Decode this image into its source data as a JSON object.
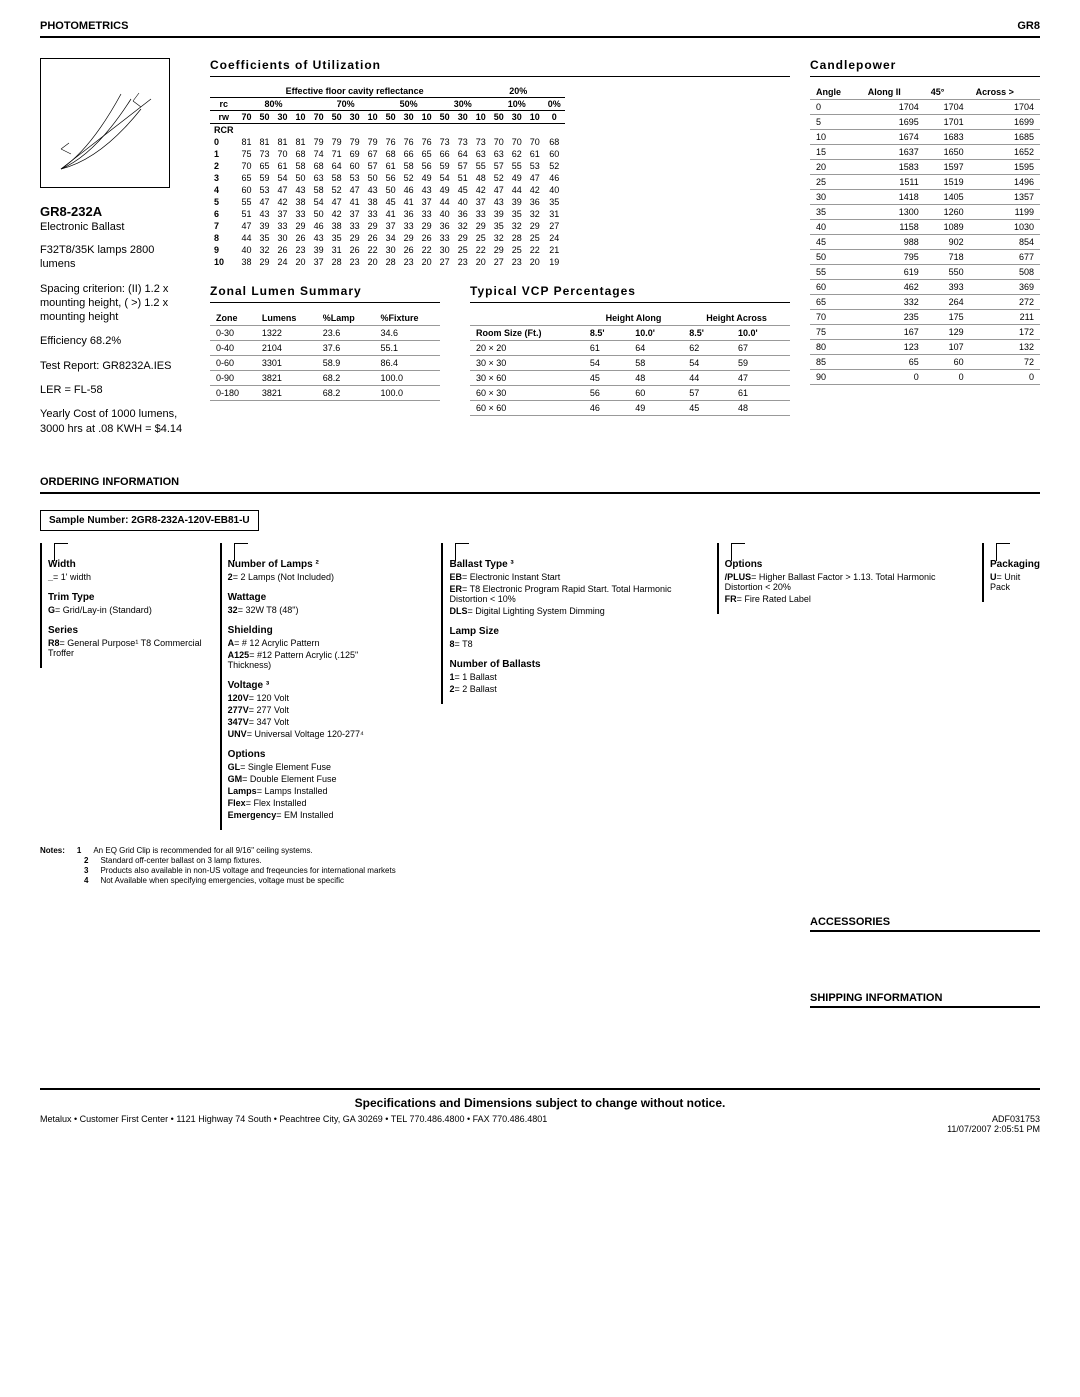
{
  "header": {
    "left": "PHOTOMETRICS",
    "right": "GR8"
  },
  "product": {
    "model": "GR8-232A",
    "ballast": "Electronic Ballast",
    "lamps": "F32T8/35K lamps 2800 lumens",
    "spacing": "Spacing criterion: (II) 1.2 x mounting height, ( >) 1.2 x mounting height",
    "efficiency": "Efficiency 68.2%",
    "test_report": "Test Report: GR8232A.IES",
    "ler": "LER = FL-58",
    "yearly": "Yearly Cost of 1000 lumens, 3000 hrs at .08 KWH = $4.14"
  },
  "cu": {
    "title": "Coefficients of Utilization",
    "top_header": "Effective floor cavity reflectance",
    "top_right": "20%",
    "rc_labels": [
      "rc",
      "80%",
      "70%",
      "50%",
      "30%",
      "10%",
      "0%"
    ],
    "rw_labels": [
      "rw",
      "70",
      "50",
      "30",
      "10",
      "70",
      "50",
      "30",
      "10",
      "50",
      "30",
      "10",
      "50",
      "30",
      "10",
      "50",
      "30",
      "10",
      "0"
    ],
    "rows": [
      [
        "0",
        "81",
        "81",
        "81",
        "81",
        "79",
        "79",
        "79",
        "79",
        "76",
        "76",
        "76",
        "73",
        "73",
        "73",
        "70",
        "70",
        "70",
        "68"
      ],
      [
        "1",
        "75",
        "73",
        "70",
        "68",
        "74",
        "71",
        "69",
        "67",
        "68",
        "66",
        "65",
        "66",
        "64",
        "63",
        "63",
        "62",
        "61",
        "60"
      ],
      [
        "2",
        "70",
        "65",
        "61",
        "58",
        "68",
        "64",
        "60",
        "57",
        "61",
        "58",
        "56",
        "59",
        "57",
        "55",
        "57",
        "55",
        "53",
        "52"
      ],
      [
        "3",
        "65",
        "59",
        "54",
        "50",
        "63",
        "58",
        "53",
        "50",
        "56",
        "52",
        "49",
        "54",
        "51",
        "48",
        "52",
        "49",
        "47",
        "46"
      ],
      [
        "4",
        "60",
        "53",
        "47",
        "43",
        "58",
        "52",
        "47",
        "43",
        "50",
        "46",
        "43",
        "49",
        "45",
        "42",
        "47",
        "44",
        "42",
        "40"
      ],
      [
        "5",
        "55",
        "47",
        "42",
        "38",
        "54",
        "47",
        "41",
        "38",
        "45",
        "41",
        "37",
        "44",
        "40",
        "37",
        "43",
        "39",
        "36",
        "35"
      ],
      [
        "6",
        "51",
        "43",
        "37",
        "33",
        "50",
        "42",
        "37",
        "33",
        "41",
        "36",
        "33",
        "40",
        "36",
        "33",
        "39",
        "35",
        "32",
        "31"
      ],
      [
        "7",
        "47",
        "39",
        "33",
        "29",
        "46",
        "38",
        "33",
        "29",
        "37",
        "33",
        "29",
        "36",
        "32",
        "29",
        "35",
        "32",
        "29",
        "27"
      ],
      [
        "8",
        "44",
        "35",
        "30",
        "26",
        "43",
        "35",
        "29",
        "26",
        "34",
        "29",
        "26",
        "33",
        "29",
        "25",
        "32",
        "28",
        "25",
        "24"
      ],
      [
        "9",
        "40",
        "32",
        "26",
        "23",
        "39",
        "31",
        "26",
        "22",
        "30",
        "26",
        "22",
        "30",
        "25",
        "22",
        "29",
        "25",
        "22",
        "21"
      ],
      [
        "10",
        "38",
        "29",
        "24",
        "20",
        "37",
        "28",
        "23",
        "20",
        "28",
        "23",
        "20",
        "27",
        "23",
        "20",
        "27",
        "23",
        "20",
        "19"
      ]
    ]
  },
  "zonal": {
    "title": "Zonal Lumen Summary",
    "headers": [
      "Zone",
      "Lumens",
      "%Lamp",
      "%Fixture"
    ],
    "rows": [
      [
        "0-30",
        "1322",
        "23.6",
        "34.6"
      ],
      [
        "0-40",
        "2104",
        "37.6",
        "55.1"
      ],
      [
        "0-60",
        "3301",
        "58.9",
        "86.4"
      ],
      [
        "0-90",
        "3821",
        "68.2",
        "100.0"
      ],
      [
        "0-180",
        "3821",
        "68.2",
        "100.0"
      ]
    ]
  },
  "vcp": {
    "title": "Typical VCP Percentages",
    "sub_headers": [
      "Height Along",
      "Height Across"
    ],
    "headers": [
      "Room Size (Ft.)",
      "8.5'",
      "10.0'",
      "8.5'",
      "10.0'"
    ],
    "rows": [
      [
        "20 × 20",
        "61",
        "64",
        "62",
        "67"
      ],
      [
        "30 × 30",
        "54",
        "58",
        "54",
        "59"
      ],
      [
        "30 × 60",
        "45",
        "48",
        "44",
        "47"
      ],
      [
        "60 × 30",
        "56",
        "60",
        "57",
        "61"
      ],
      [
        "60 × 60",
        "46",
        "49",
        "45",
        "48"
      ]
    ]
  },
  "candle": {
    "title": "Candlepower",
    "headers": [
      "Angle",
      "Along II",
      "45°",
      "Across >"
    ],
    "rows": [
      [
        "0",
        "1704",
        "1704",
        "1704"
      ],
      [
        "5",
        "1695",
        "1701",
        "1699"
      ],
      [
        "10",
        "1674",
        "1683",
        "1685"
      ],
      [
        "15",
        "1637",
        "1650",
        "1652"
      ],
      [
        "20",
        "1583",
        "1597",
        "1595"
      ],
      [
        "25",
        "1511",
        "1519",
        "1496"
      ],
      [
        "30",
        "1418",
        "1405",
        "1357"
      ],
      [
        "35",
        "1300",
        "1260",
        "1199"
      ],
      [
        "40",
        "1158",
        "1089",
        "1030"
      ],
      [
        "45",
        "988",
        "902",
        "854"
      ],
      [
        "50",
        "795",
        "718",
        "677"
      ],
      [
        "55",
        "619",
        "550",
        "508"
      ],
      [
        "60",
        "462",
        "393",
        "369"
      ],
      [
        "65",
        "332",
        "264",
        "272"
      ],
      [
        "70",
        "235",
        "175",
        "211"
      ],
      [
        "75",
        "167",
        "129",
        "172"
      ],
      [
        "80",
        "123",
        "107",
        "132"
      ],
      [
        "85",
        "65",
        "60",
        "72"
      ],
      [
        "90",
        "0",
        "0",
        "0"
      ]
    ]
  },
  "ordering": {
    "title": "ORDERING INFORMATION",
    "sample_label": "Sample Number: 2GR8-232A-120V-EB81-U",
    "cols": [
      {
        "groups": [
          {
            "title": "Width",
            "opts": [
              [
                "_",
                "= 1' width"
              ]
            ]
          },
          {
            "title": "Trim Type",
            "opts": [
              [
                "G",
                "= Grid/Lay-in (Standard)"
              ]
            ]
          },
          {
            "title": "Series",
            "opts": [
              [
                "R8",
                "= General Purpose¹ T8 Commercial Troffer"
              ]
            ]
          }
        ]
      },
      {
        "groups": [
          {
            "title": "Number of Lamps ²",
            "opts": [
              [
                "2",
                "= 2 Lamps (Not Included)"
              ]
            ]
          },
          {
            "title": "Wattage",
            "opts": [
              [
                "32",
                "= 32W T8 (48\")"
              ]
            ]
          },
          {
            "title": "Shielding",
            "opts": [
              [
                "A",
                "= # 12 Acrylic Pattern"
              ],
              [
                "A125",
                "= #12 Pattern Acrylic (.125\" Thickness)"
              ]
            ]
          },
          {
            "title": "Voltage ³",
            "opts": [
              [
                "120V",
                "= 120 Volt"
              ],
              [
                "277V",
                "= 277 Volt"
              ],
              [
                "347V",
                "= 347 Volt"
              ],
              [
                "UNV",
                "= Universal Voltage 120-277⁴"
              ]
            ]
          },
          {
            "title": "Options",
            "opts": [
              [
                "GL",
                "= Single Element Fuse"
              ],
              [
                "GM",
                "= Double Element Fuse"
              ],
              [
                "Lamps",
                "= Lamps Installed"
              ],
              [
                "Flex",
                "= Flex Installed"
              ],
              [
                "Emergency",
                "= EM Installed"
              ]
            ]
          }
        ]
      },
      {
        "groups": []
      },
      {
        "groups": [
          {
            "title": "Ballast Type ³",
            "opts": [
              [
                "EB",
                "= Electronic Instant Start"
              ],
              [
                "ER",
                "= T8 Electronic Program Rapid Start. Total Harmonic Distortion < 10%"
              ],
              [
                "DLS",
                "= Digital Lighting System Dimming"
              ]
            ]
          },
          {
            "title": "Lamp Size",
            "opts": [
              [
                "8",
                "= T8"
              ]
            ]
          },
          {
            "title": "Number of Ballasts",
            "opts": [
              [
                "1",
                "= 1 Ballast"
              ],
              [
                "2",
                "= 2 Ballast"
              ]
            ]
          }
        ]
      },
      {
        "groups": [
          {
            "title": "Options",
            "opts": [
              [
                "/PLUS",
                "= Higher Ballast Factor > 1.13. Total Harmonic Distortion < 20%"
              ],
              [
                "FR",
                "= Fire Rated Label"
              ]
            ]
          }
        ]
      },
      {
        "groups": [
          {
            "title": "Packaging",
            "opts": [
              [
                "U",
                "= Unit Pack"
              ]
            ]
          }
        ]
      }
    ]
  },
  "notes": {
    "label": "Notes:",
    "items": [
      [
        "1",
        "An EQ Grid Clip is recommended for all 9/16\" ceiling systems."
      ],
      [
        "2",
        "Standard off-center ballast on 3 lamp fixtures."
      ],
      [
        "3",
        "Products also available in non-US voltage and freqeuncies for international markets"
      ],
      [
        "4",
        "Not Available when specifying emergencies, voltage must be specific"
      ]
    ]
  },
  "accessories_title": "ACCESSORIES",
  "shipping_title": "SHIPPING INFORMATION",
  "footer": {
    "bold": "Specifications and Dimensions subject to change without notice.",
    "line": "Metalux • Customer First Center • 1121 Highway 74 South • Peachtree City, GA 30269 • TEL 770.486.4800 • FAX 770.486.4801",
    "code": "ADF031753",
    "date": "11/07/2007 2:05:51 PM"
  }
}
